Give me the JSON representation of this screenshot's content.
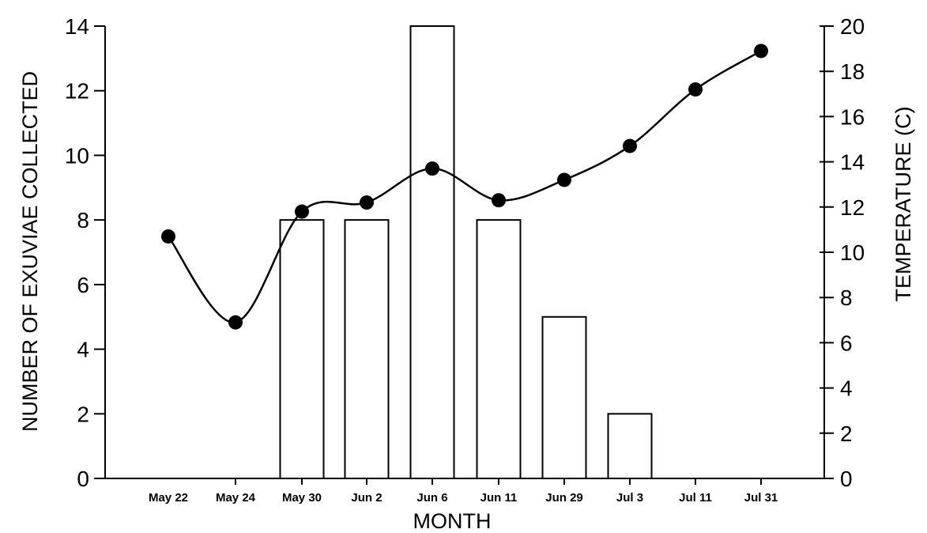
{
  "chart_data": {
    "type": "bar",
    "xlabel": "MONTH",
    "ylabel": "NUMBER OF EXUVIAE COLLECTED",
    "y2label": "TEMPERATURE (C)",
    "categories": [
      "May 22",
      "May 24",
      "May 30",
      "Jun 2",
      "Jun 6",
      "Jun 11",
      "Jun 29",
      "Jul 3",
      "Jul 11",
      "Jul 31"
    ],
    "ylim": [
      0,
      14
    ],
    "y2lim": [
      0,
      20
    ],
    "yticks": [
      "0",
      "2",
      "4",
      "6",
      "8",
      "10",
      "12",
      "14"
    ],
    "y2ticks": [
      "0",
      "2",
      "4",
      "6",
      "8",
      "10",
      "12",
      "14",
      "16",
      "18",
      "20"
    ],
    "series": [
      {
        "type": "bar",
        "axis": "left",
        "values": [
          0,
          0,
          8,
          8,
          14,
          8,
          5,
          2,
          0,
          0
        ]
      },
      {
        "type": "line",
        "axis": "right",
        "values": [
          10.7,
          6.9,
          11.8,
          12.2,
          13.7,
          12.3,
          13.2,
          14.7,
          17.2,
          18.9
        ]
      }
    ],
    "grid": false,
    "legend": "none"
  }
}
